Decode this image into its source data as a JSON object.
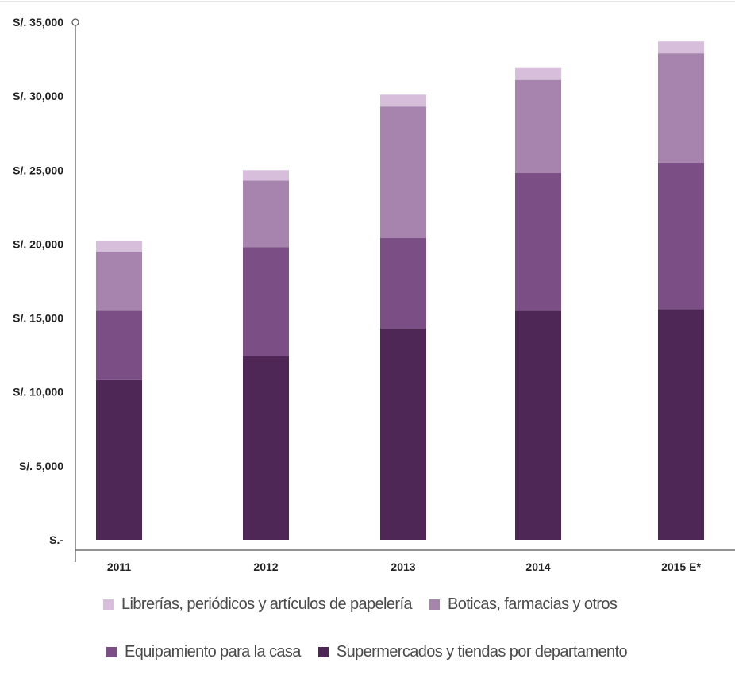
{
  "chart_data": {
    "type": "bar",
    "stacked": true,
    "categories": [
      "2011",
      "2012",
      "2013",
      "2014",
      "2015 E*"
    ],
    "ylim": [
      0,
      35000
    ],
    "yticks": [
      {
        "value": 0,
        "label": "S.-"
      },
      {
        "value": 5000,
        "label": "S/. 5,000"
      },
      {
        "value": 10000,
        "label": "S/. 10,000"
      },
      {
        "value": 15000,
        "label": "S/. 15,000"
      },
      {
        "value": 20000,
        "label": "S/. 20,000"
      },
      {
        "value": 25000,
        "label": "S/. 25,000"
      },
      {
        "value": 30000,
        "label": "S/. 30,000"
      },
      {
        "value": 35000,
        "label": "S/. 35,000"
      }
    ],
    "grid": false,
    "legend_position": "bottom",
    "series": [
      {
        "name": "Supermercados y tiendas por departamento",
        "color": "#4e2756",
        "values": [
          10800,
          12400,
          14300,
          15500,
          15600
        ]
      },
      {
        "name": "Equipamiento para la casa",
        "color": "#7b4f86",
        "values": [
          4700,
          7400,
          6100,
          9300,
          9900
        ]
      },
      {
        "name": "Boticas, farmacias y otros",
        "color": "#a784ae",
        "values": [
          4000,
          4500,
          8900,
          6300,
          7400
        ]
      },
      {
        "name": "Librerías, periódicos y artículos de papelería",
        "color": "#d7bfdc",
        "values": [
          700,
          700,
          800,
          800,
          800
        ]
      }
    ],
    "legend_rows": [
      [
        3,
        2
      ],
      [
        1,
        0
      ]
    ]
  }
}
